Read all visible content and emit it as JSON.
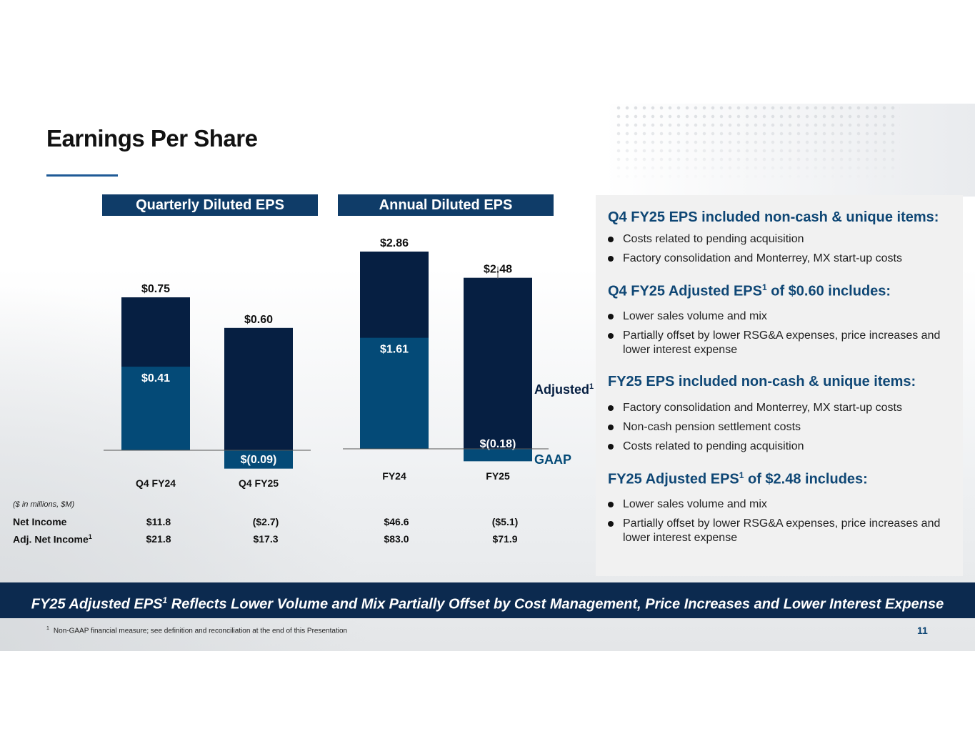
{
  "title": "Earnings Per Share",
  "colors": {
    "adjusted": "#061f42",
    "gaap": "#044a77",
    "accent": "#0f4775",
    "banner": "#0c2a4f"
  },
  "chart_data": [
    {
      "type": "bar",
      "title": "Quarterly Diluted EPS",
      "categories": [
        "Q4 FY24",
        "Q4 FY25"
      ],
      "series": [
        {
          "name": "GAAP",
          "values": [
            0.41,
            -0.09
          ],
          "labels": [
            "$0.41",
            "$(0.09)"
          ]
        },
        {
          "name": "Adjusted",
          "values": [
            0.75,
            0.6
          ],
          "labels": [
            "$0.75",
            "$0.60"
          ]
        }
      ]
    },
    {
      "type": "bar",
      "title": "Annual Diluted EPS",
      "categories": [
        "FY24",
        "FY25"
      ],
      "series": [
        {
          "name": "GAAP",
          "values": [
            1.61,
            -0.18
          ],
          "labels": [
            "$1.61",
            "$(0.18)"
          ]
        },
        {
          "name": "Adjusted",
          "values": [
            2.86,
            2.48
          ],
          "labels": [
            "$2.86",
            "$2.48"
          ]
        }
      ],
      "legend": {
        "adjusted": "Adjusted",
        "adjusted_sup": "1",
        "gaap": "GAAP"
      }
    }
  ],
  "financials": {
    "note": "($ in millions, $M)",
    "rows": [
      {
        "label": "Net Income",
        "sup": "",
        "values": [
          "$11.8",
          "($2.7)",
          "$46.6",
          "($5.1)"
        ]
      },
      {
        "label": "Adj. Net Income",
        "sup": "1",
        "values": [
          "$21.8",
          "$17.3",
          "$83.0",
          "$71.9"
        ]
      }
    ]
  },
  "panel": {
    "s1": {
      "heading": "Q4 FY25 EPS included non-cash & unique items:",
      "bullets": [
        "Costs related to pending acquisition",
        "Factory consolidation and Monterrey, MX start-up costs"
      ]
    },
    "s2": {
      "heading_a": "Q4 FY25 Adjusted EPS",
      "sup": "1",
      "heading_b": " of $0.60 includes:",
      "bullets": [
        "Lower sales volume and mix",
        "Partially offset by lower RSG&A expenses, price increases and lower interest expense"
      ]
    },
    "s3": {
      "heading": "FY25 EPS included non-cash & unique items:",
      "bullets": [
        "Factory consolidation and Monterrey, MX start-up costs",
        "Non-cash pension settlement costs",
        "Costs related to pending acquisition"
      ]
    },
    "s4": {
      "heading_a": "FY25 Adjusted EPS",
      "sup": "1",
      "heading_b": " of $2.48 includes:",
      "bullets": [
        "Lower sales volume and mix",
        "Partially offset by lower RSG&A expenses, price increases and lower interest expense"
      ]
    }
  },
  "banner": {
    "a": "FY25 Adjusted EPS",
    "sup": "1",
    "b": " Reflects Lower Volume and Mix Partially Offset by Cost Management, Price Increases and Lower Interest Expense"
  },
  "footnote": {
    "sup": "1",
    "text": "Non-GAAP financial measure; see definition and reconciliation at the end of this Presentation"
  },
  "page_number": "11"
}
